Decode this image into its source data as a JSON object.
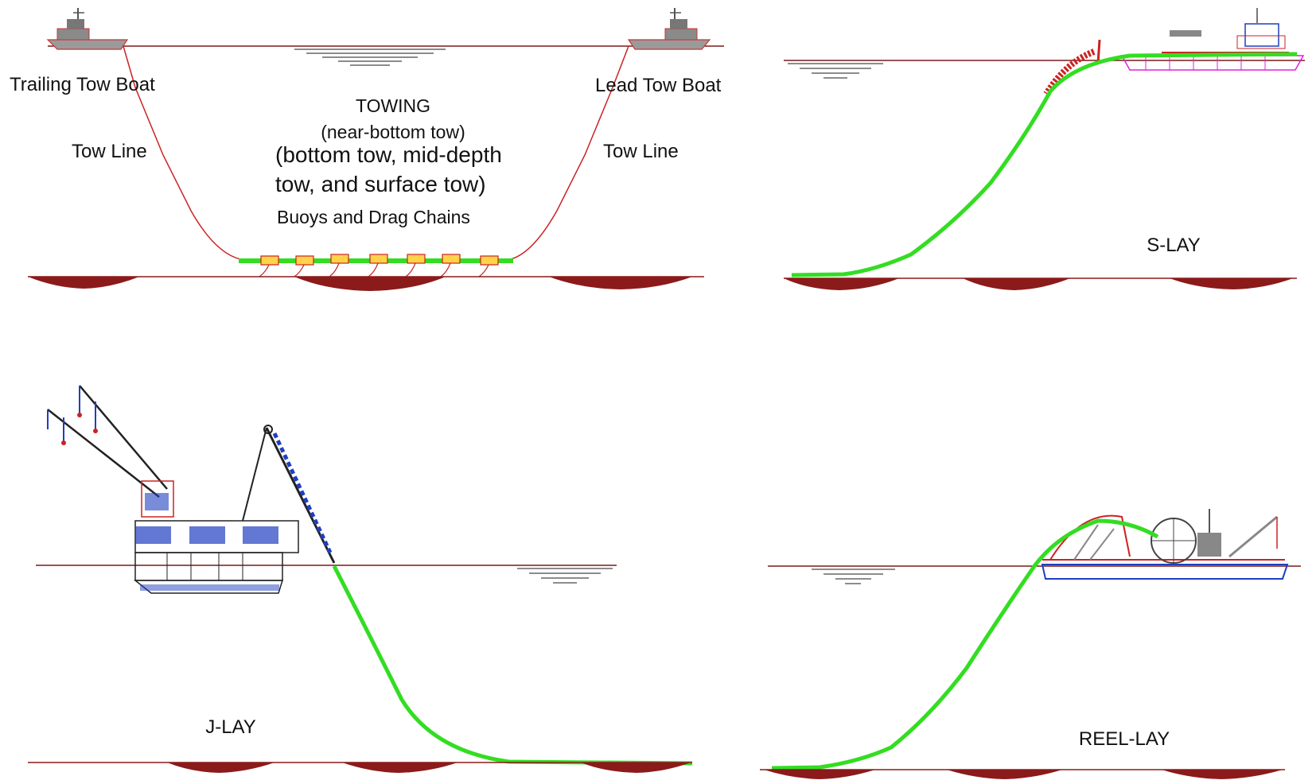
{
  "towing": {
    "trailing_boat_label": "Trailing Tow Boat",
    "lead_boat_label": "Lead Tow Boat",
    "tow_line_left": "Tow Line",
    "tow_line_right": "Tow Line",
    "title": "TOWING",
    "subtitle": "(near-bottom tow)",
    "variants_line1": "(bottom tow, mid-depth",
    "variants_line2": "tow, and surface tow)",
    "buoys_label": "Buoys and Drag Chains"
  },
  "slay": {
    "label": "S-LAY"
  },
  "jlay": {
    "label": "J-LAY"
  },
  "reellay": {
    "label": "REEL-LAY"
  },
  "colors": {
    "pipeline": "#33dd22",
    "line": "#cc2222",
    "seabed": "#8b1a1a",
    "structure_blue": "#1f3fbf",
    "structure_magenta": "#e020e0",
    "buoy_fill": "#ffd24a"
  }
}
